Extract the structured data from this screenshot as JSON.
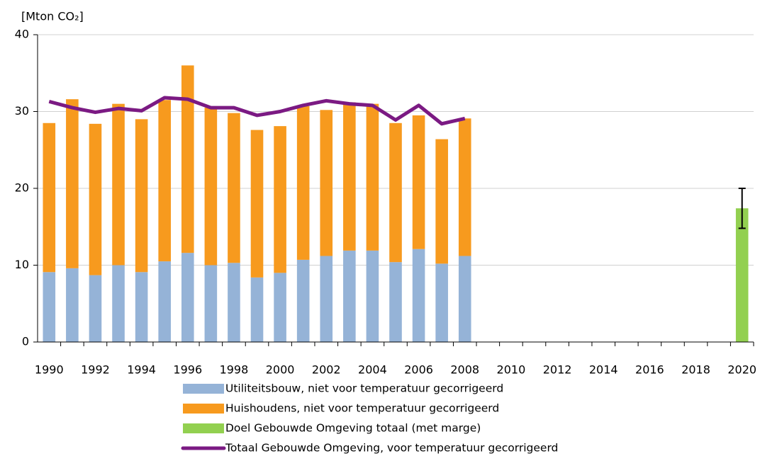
{
  "chart_data": {
    "type": "bar",
    "stacked": true,
    "y_label": "[Mton CO₂]",
    "categories": [
      "1990",
      null,
      "1992",
      null,
      "1994",
      null,
      "1996",
      null,
      "1998",
      null,
      "2000",
      null,
      "2002",
      null,
      "2004",
      null,
      "2006",
      null,
      "2008",
      null,
      "2010",
      null,
      "2012",
      null,
      "2014",
      null,
      "2016",
      null,
      "2018",
      null,
      "2020"
    ],
    "ylim": [
      0,
      40
    ],
    "yticks": [
      0,
      10,
      20,
      30,
      40
    ],
    "grid": true,
    "series": [
      {
        "name": "Utiliteitsbouw, niet voor temperatuur gecorrigeerd",
        "type": "bar",
        "color": "#95b3d7",
        "values": [
          9.1,
          9.6,
          8.7,
          10.0,
          9.1,
          10.5,
          11.6,
          10.0,
          10.3,
          8.4,
          9.0,
          10.7,
          11.2,
          11.9,
          11.9,
          10.4,
          12.1,
          10.2,
          11.2,
          null,
          null,
          null,
          null,
          null,
          null,
          null,
          null,
          null,
          null,
          null,
          null
        ]
      },
      {
        "name": "Huishoudens, niet voor temperatuur gecorrigeerd",
        "type": "bar",
        "color": "#f79a1e",
        "values": [
          19.4,
          22.0,
          19.7,
          21.0,
          19.9,
          21.0,
          24.4,
          20.5,
          19.5,
          19.2,
          19.1,
          20.0,
          19.0,
          19.3,
          19.1,
          18.1,
          17.4,
          16.2,
          17.9,
          null,
          null,
          null,
          null,
          null,
          null,
          null,
          null,
          null,
          null,
          null,
          null
        ]
      },
      {
        "name": "Doel Gebouwde Omgeving totaal (met marge)",
        "type": "bar",
        "color": "#92d050",
        "values": [
          null,
          null,
          null,
          null,
          null,
          null,
          null,
          null,
          null,
          null,
          null,
          null,
          null,
          null,
          null,
          null,
          null,
          null,
          null,
          null,
          null,
          null,
          null,
          null,
          null,
          null,
          null,
          null,
          null,
          null,
          17.4
        ],
        "errors": [
          null,
          null,
          null,
          null,
          null,
          null,
          null,
          null,
          null,
          null,
          null,
          null,
          null,
          null,
          null,
          null,
          null,
          null,
          null,
          null,
          null,
          null,
          null,
          null,
          null,
          null,
          null,
          null,
          null,
          null,
          2.6
        ]
      },
      {
        "name": "Totaal Gebouwde Omgeving, voor temperatuur gecorrigeerd",
        "type": "line",
        "color": "#7b1a83",
        "values": [
          31.3,
          30.5,
          29.9,
          30.4,
          30.1,
          31.8,
          31.6,
          30.5,
          30.5,
          29.5,
          30.0,
          30.8,
          31.4,
          31.0,
          30.8,
          28.9,
          30.8,
          28.4,
          29.1,
          null,
          null,
          null,
          null,
          null,
          null,
          null,
          null,
          null,
          null,
          null,
          null
        ]
      }
    ]
  }
}
